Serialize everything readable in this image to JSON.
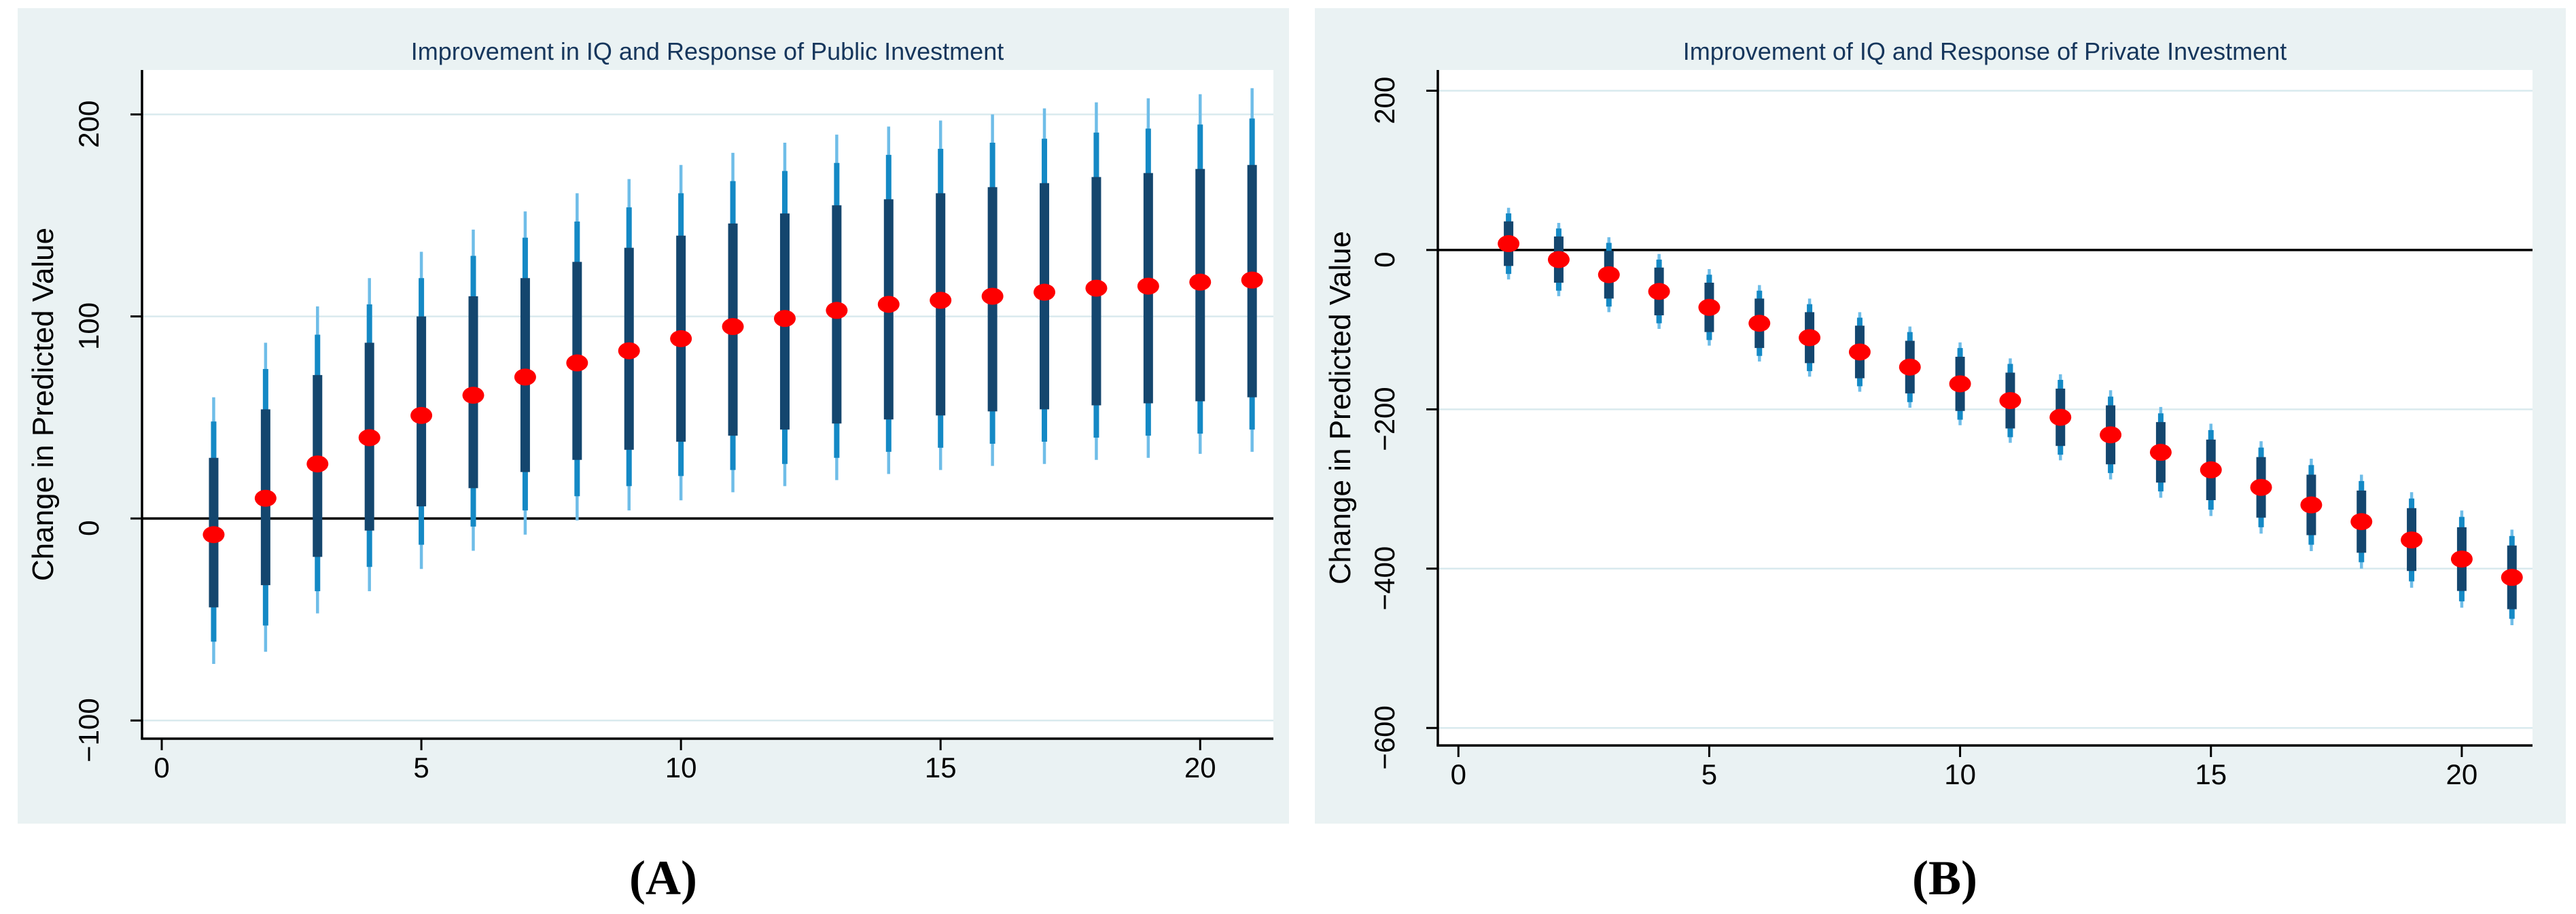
{
  "colors": {
    "page_bg": "#ffffff",
    "panel_bg": "#eaf2f3",
    "plot_bg": "#ffffff",
    "grid": "#d9eaee",
    "axis": "#000000",
    "zero_line": "#000000",
    "title": "#16365c",
    "tick_label": "#000000",
    "caption": "#000000",
    "ci_inner": "#14466e",
    "ci_mid": "#1489c5",
    "ci_outer": "#6fbde8",
    "marker": "#fe0000"
  },
  "chart_data": [
    {
      "type": "scatter",
      "panel": "A",
      "caption": "(A)",
      "title": "Improvement in IQ and Response of Public Investment",
      "ylabel": "Change in Predicted Value",
      "xlabel": "",
      "legend": "none",
      "grid": "horizontal",
      "marker_shape": "ellipse",
      "yticks": [
        200,
        100,
        0,
        -100
      ],
      "xticks": [
        0,
        5,
        10,
        15,
        20
      ],
      "ylim": [
        -109,
        222
      ],
      "xlim": [
        -0.38,
        21.41
      ],
      "zero_line": 0,
      "x": [
        1,
        2,
        3,
        4,
        5,
        6,
        7,
        8,
        9,
        10,
        11,
        12,
        13,
        14,
        15,
        16,
        17,
        18,
        19,
        20,
        21
      ],
      "center": [
        -8,
        10,
        27,
        40,
        51,
        61,
        70,
        77,
        83,
        89,
        95,
        99,
        103,
        106,
        108,
        110,
        112,
        114,
        115,
        117,
        118
      ],
      "ci_inner_lo": [
        -44,
        -33,
        -19,
        -6,
        6,
        15,
        23,
        29,
        34,
        38,
        41,
        44,
        47,
        49,
        51,
        53,
        54,
        56,
        57,
        58,
        60
      ],
      "ci_inner_hi": [
        30,
        54,
        71,
        87,
        100,
        110,
        119,
        127,
        134,
        140,
        146,
        151,
        155,
        158,
        161,
        164,
        166,
        169,
        171,
        173,
        175
      ],
      "ci_mid_lo": [
        -61,
        -53,
        -36,
        -24,
        -13,
        -4,
        4,
        11,
        16,
        21,
        24,
        27,
        30,
        33,
        35,
        37,
        38,
        40,
        41,
        42,
        44
      ],
      "ci_mid_hi": [
        48,
        74,
        91,
        106,
        119,
        130,
        139,
        147,
        154,
        161,
        167,
        172,
        176,
        180,
        183,
        186,
        188,
        191,
        193,
        195,
        198
      ],
      "ci_outer_lo": [
        -72,
        -66,
        -47,
        -36,
        -25,
        -16,
        -8,
        -1,
        4,
        9,
        13,
        16,
        19,
        22,
        24,
        26,
        27,
        29,
        30,
        32,
        33
      ],
      "ci_outer_hi": [
        60,
        87,
        105,
        119,
        132,
        143,
        152,
        161,
        168,
        175,
        181,
        186,
        190,
        194,
        197,
        200,
        203,
        206,
        208,
        210,
        213
      ]
    },
    {
      "type": "scatter",
      "panel": "B",
      "caption": "(B)",
      "title": "Improvement of IQ and Response of Private Investment",
      "ylabel": "Change in Predicted Value",
      "xlabel": "",
      "legend": "none",
      "grid": "horizontal",
      "marker_shape": "ellipse",
      "yticks": [
        200,
        0,
        -200,
        -400,
        -600
      ],
      "xticks": [
        0,
        5,
        10,
        15,
        20
      ],
      "ylim": [
        -622,
        226
      ],
      "xlim": [
        -0.41,
        21.41
      ],
      "zero_line": 0,
      "x": [
        1,
        2,
        3,
        4,
        5,
        6,
        7,
        8,
        9,
        10,
        11,
        12,
        13,
        14,
        15,
        16,
        17,
        18,
        19,
        20,
        21
      ],
      "center": [
        8,
        -12,
        -31,
        -52,
        -72,
        -92,
        -110,
        -128,
        -147,
        -168,
        -189,
        -210,
        -232,
        -254,
        -276,
        -298,
        -320,
        -341,
        -364,
        -388,
        -411
      ],
      "ci_inner_lo": [
        -20,
        -41,
        -61,
        -82,
        -103,
        -123,
        -142,
        -161,
        -180,
        -202,
        -224,
        -246,
        -269,
        -292,
        -314,
        -336,
        -358,
        -380,
        -403,
        -428,
        -451
      ],
      "ci_inner_hi": [
        36,
        17,
        -1,
        -22,
        -41,
        -61,
        -78,
        -95,
        -114,
        -134,
        -154,
        -174,
        -195,
        -216,
        -238,
        -260,
        -282,
        -302,
        -324,
        -348,
        -371
      ],
      "ci_mid_lo": [
        -30,
        -51,
        -71,
        -92,
        -113,
        -133,
        -152,
        -171,
        -191,
        -213,
        -235,
        -257,
        -280,
        -303,
        -326,
        -348,
        -370,
        -392,
        -416,
        -441,
        -463
      ],
      "ci_mid_hi": [
        46,
        27,
        9,
        -12,
        -31,
        -51,
        -68,
        -85,
        -103,
        -123,
        -143,
        -163,
        -184,
        -205,
        -226,
        -248,
        -270,
        -290,
        -312,
        -335,
        -359
      ],
      "ci_outer_lo": [
        -37,
        -58,
        -78,
        -99,
        -120,
        -140,
        -159,
        -178,
        -198,
        -220,
        -242,
        -264,
        -288,
        -311,
        -334,
        -356,
        -378,
        -400,
        -424,
        -449,
        -471
      ],
      "ci_outer_hi": [
        53,
        34,
        16,
        -5,
        -24,
        -44,
        -61,
        -78,
        -96,
        -116,
        -136,
        -156,
        -176,
        -197,
        -218,
        -240,
        -262,
        -282,
        -304,
        -327,
        -351
      ]
    }
  ]
}
